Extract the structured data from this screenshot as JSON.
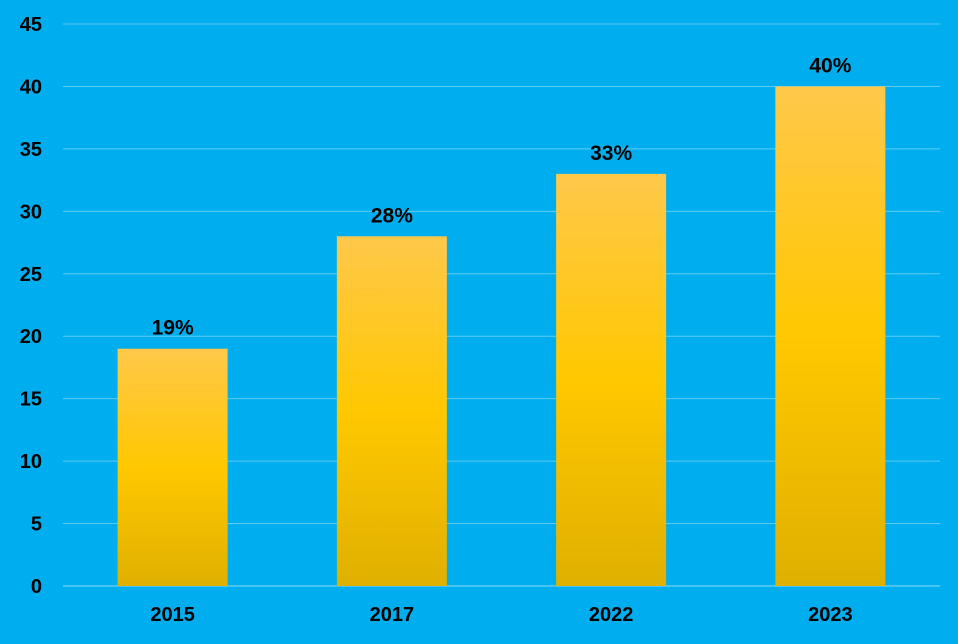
{
  "chart_data": {
    "type": "bar",
    "categories": [
      "2015",
      "2017",
      "2022",
      "2023"
    ],
    "values": [
      19,
      28,
      33,
      40
    ],
    "data_labels": [
      "19%",
      "28%",
      "33%",
      "40%"
    ],
    "ylim": [
      0,
      45
    ],
    "yticks": [
      0,
      5,
      10,
      15,
      20,
      25,
      30,
      35,
      40,
      45
    ],
    "grid": true,
    "legend": "none",
    "colors": {
      "background": "#00AEEF",
      "bar_top": "#FFC84A",
      "bar_mid": "#FFC800",
      "bar_bottom": "#E0B000",
      "gridline": "#5CCBF0"
    }
  }
}
